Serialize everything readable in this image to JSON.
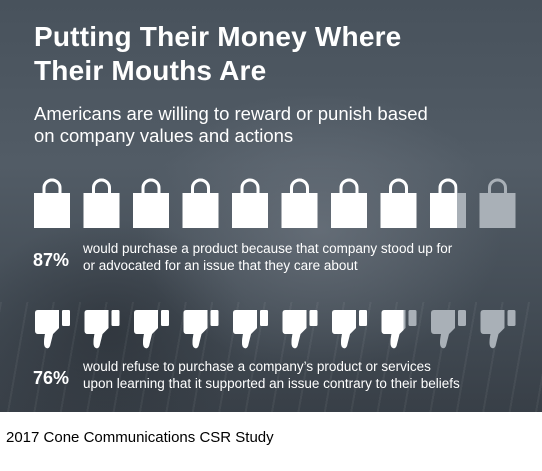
{
  "title_line1": "Putting Their Money Where",
  "title_line2": "Their Mouths Are",
  "subtitle_line1": "Americans are willing to reward or punish based",
  "subtitle_line2": "on company values and actions",
  "stats": [
    {
      "percent": "87%",
      "line1": "would purchase a product because that company stood up for",
      "line2": "or advocated for an issue that they care about"
    },
    {
      "percent": "76%",
      "line1": "would refuse to purchase a company’s product or services",
      "line2": "upon learning that it supported an issue contrary to their beliefs"
    }
  ],
  "caption": "2017 Cone Communications CSR Study",
  "chart_data": [
    {
      "type": "pictograph",
      "icon": "shopping-bag-icon",
      "icon_count": 10,
      "value": 87,
      "unit": "%"
    },
    {
      "type": "pictograph",
      "icon": "thumbs-down-icon",
      "icon_count": 10,
      "value": 76,
      "unit": "%"
    }
  ],
  "colors": {
    "filled": "#ffffff",
    "unfilled": "#a9b0b7",
    "panel": "#4c5660"
  }
}
